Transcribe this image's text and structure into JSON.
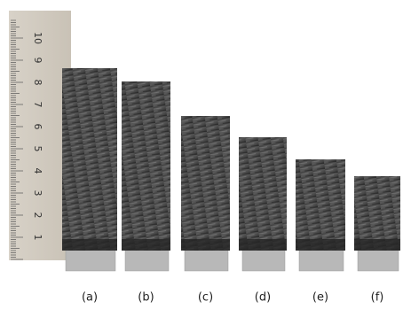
{
  "ruler": {
    "numbers": [
      "1",
      "2",
      "3",
      "4",
      "5",
      "6",
      "7",
      "8",
      "9",
      "10"
    ]
  },
  "specimens": [
    {
      "label": "(a)"
    },
    {
      "label": "(b)"
    },
    {
      "label": "(c)"
    },
    {
      "label": "(d)"
    },
    {
      "label": "(e)"
    },
    {
      "label": "(f)"
    }
  ]
}
